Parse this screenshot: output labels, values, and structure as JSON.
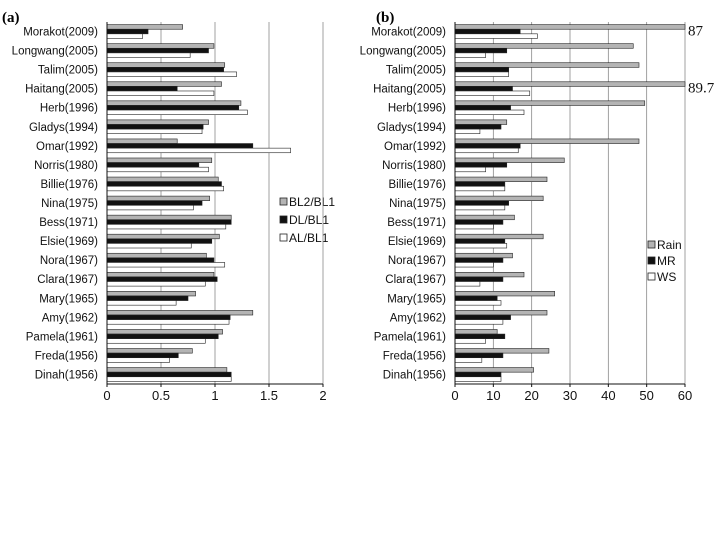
{
  "chart_data": [
    {
      "type": "bar",
      "orientation": "horizontal",
      "panel_label": "(a)",
      "categories": [
        "Morakot(2009)",
        "Longwang(2005)",
        "Talim(2005)",
        "Haitang(2005)",
        "Herb(1996)",
        "Gladys(1994)",
        "Omar(1992)",
        "Norris(1980)",
        "Billie(1976)",
        "Nina(1975)",
        "Bess(1971)",
        "Elsie(1969)",
        "Nora(1967)",
        "Clara(1967)",
        "Mary(1965)",
        "Amy(1962)",
        "Pamela(1961)",
        "Freda(1956)",
        "Dinah(1956)"
      ],
      "series": [
        {
          "name": "BL2/BL1",
          "color": "#b4b4b4",
          "values": [
            0.7,
            0.99,
            1.09,
            1.06,
            1.24,
            0.94,
            0.65,
            0.97,
            1.03,
            0.95,
            1.15,
            1.04,
            0.92,
            0.99,
            0.82,
            1.35,
            1.07,
            0.79,
            1.11
          ]
        },
        {
          "name": "DL/BL1",
          "color": "#111111",
          "values": [
            0.38,
            0.94,
            1.08,
            0.65,
            1.22,
            0.89,
            1.35,
            0.85,
            1.06,
            0.88,
            1.15,
            0.97,
            0.99,
            1.02,
            0.75,
            1.14,
            1.03,
            0.66,
            1.15
          ]
        },
        {
          "name": "AL/BL1",
          "color": "#ffffff",
          "values": [
            0.33,
            0.77,
            1.2,
            0.99,
            1.3,
            0.88,
            1.7,
            0.94,
            1.08,
            0.8,
            1.1,
            0.78,
            1.09,
            0.91,
            0.64,
            1.13,
            0.91,
            0.58,
            1.15
          ]
        }
      ],
      "xlim": [
        0,
        2
      ],
      "xticks": [
        "0",
        "0.5",
        "1",
        "1.5",
        "2"
      ]
    },
    {
      "type": "bar",
      "orientation": "horizontal",
      "panel_label": "(b)",
      "categories": [
        "Morakot(2009)",
        "Longwang(2005)",
        "Talim(2005)",
        "Haitang(2005)",
        "Herb(1996)",
        "Gladys(1994)",
        "Omar(1992)",
        "Norris(1980)",
        "Billie(1976)",
        "Nina(1975)",
        "Bess(1971)",
        "Elsie(1969)",
        "Nora(1967)",
        "Clara(1967)",
        "Mary(1965)",
        "Amy(1962)",
        "Pamela(1961)",
        "Freda(1956)",
        "Dinah(1956)"
      ],
      "series": [
        {
          "name": "Rain",
          "color": "#b4b4b4",
          "values": [
            60,
            46.5,
            48,
            60,
            49.5,
            13.5,
            48,
            28.5,
            24,
            23,
            15.5,
            23,
            15,
            18,
            26,
            24,
            11,
            24.5,
            20.5
          ]
        },
        {
          "name": "MR",
          "color": "#111111",
          "values": [
            17,
            13.5,
            14,
            15,
            14.5,
            12,
            17,
            13.5,
            13,
            14,
            12.5,
            13,
            12.5,
            12.5,
            11,
            14.5,
            13,
            12.5,
            12
          ]
        },
        {
          "name": "WS",
          "color": "#ffffff",
          "values": [
            21.5,
            8,
            14,
            19.5,
            18,
            6.5,
            16.5,
            8,
            13,
            13,
            10,
            13.5,
            10,
            6.5,
            12,
            12.5,
            8,
            7,
            12
          ]
        }
      ],
      "xlim": [
        0,
        60
      ],
      "xticks": [
        "0",
        "10",
        "20",
        "30",
        "40",
        "50",
        "60"
      ],
      "annotations": [
        {
          "text": "87",
          "category": "Morakot(2009)"
        },
        {
          "text": "89.7",
          "category": "Haitang(2005)"
        }
      ]
    }
  ]
}
